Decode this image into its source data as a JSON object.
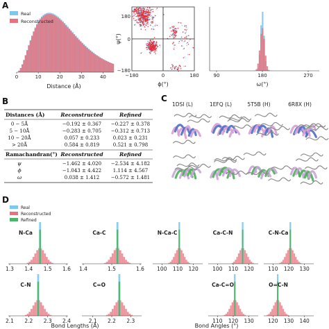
{
  "panels": {
    "a": "A",
    "b": "B",
    "c": "C",
    "d": "D"
  },
  "legend_a": [
    "Real",
    "Reconstructed"
  ],
  "legend_d": [
    "Real",
    "Reconstructed",
    "Refined"
  ],
  "colors": {
    "real": "#7ec8f0",
    "reconstructed": "#e8737e",
    "refined": "#4cb56a"
  },
  "chart_data": [
    {
      "type": "bar",
      "xlabel": "Distance (Å)",
      "ticks": [
        "0",
        "10",
        "20",
        "30",
        "40"
      ],
      "x_range": [
        0,
        45
      ],
      "series": [
        {
          "name": "Real",
          "shape": "right-skewed, peak near 15"
        },
        {
          "name": "Reconstructed",
          "shape": "right-skewed, peak near 15"
        }
      ]
    },
    {
      "type": "scatter",
      "xlabel": "ϕ(°)",
      "ylabel": "ψ(°)",
      "xticks": [
        "−180",
        "0",
        "180"
      ],
      "yticks": [
        "180",
        "0",
        "−180"
      ],
      "x_range": [
        -180,
        180
      ],
      "y_range": [
        -180,
        180
      ]
    },
    {
      "type": "bar",
      "xlabel": "ω(°)",
      "ticks": [
        "90",
        "180",
        "270"
      ],
      "x_range": [
        90,
        270
      ],
      "peak": 180
    }
  ],
  "table": {
    "head_dist": [
      "Distances (Å)",
      "Reconstructed",
      "Refined"
    ],
    "rows_dist": [
      [
        "0 − 5Å",
        "−0.192 ± 0.367",
        "−0.227 ± 0.378"
      ],
      [
        "5 − 10Å",
        "−0.283 ± 0.705",
        "−0.312 ± 0.713"
      ],
      [
        "10 − 20Å",
        "0.057 ± 0.233",
        "0.023 ± 0.231"
      ],
      [
        "> 20Å",
        "0.584 ± 0.819",
        "0.521 ± 0.798"
      ]
    ],
    "head_rama": [
      "Ramachandran(°)",
      "Reconstructed",
      "Refined"
    ],
    "rows_rama": [
      [
        "ψ",
        "−1.462 ± 4.020",
        "−2.534 ± 4.182"
      ],
      [
        "ϕ",
        "−1.043 ± 4.422",
        "1.114 ± 4.567"
      ],
      [
        "ω",
        "0.038 ± 1.412",
        "−0.572 ± 1.481"
      ]
    ]
  },
  "structures": [
    "1DSI (L)",
    "1EFQ (L)",
    "5T5B (H)",
    "6R8X (H)"
  ],
  "bond_lengths": {
    "xlabel": "Bond Lengths (Å)",
    "panels": [
      {
        "label": "N-Ca",
        "ticks": [
          "1.3",
          "1.4",
          "1.5",
          "1.6"
        ],
        "range": [
          1.3,
          1.6
        ],
        "peak": 1.46
      },
      {
        "label": "Ca-C",
        "ticks": [
          "1.4",
          "1.5",
          "1.6"
        ],
        "range": [
          1.4,
          1.6
        ],
        "peak": 1.52
      },
      {
        "label": "C-N",
        "ticks": [
          "2.1",
          "2.2",
          "2.3",
          "2.4"
        ],
        "range": [
          2.1,
          2.4
        ],
        "peak": 2.25
      },
      {
        "label": "C=O",
        "ticks": [
          "2.1",
          "2.2",
          "2.3"
        ],
        "range": [
          2.05,
          2.35
        ],
        "peak": 2.24
      }
    ]
  },
  "bond_angles": {
    "xlabel": "Bond Angles (°)",
    "panels": [
      {
        "label": "N-Ca-C",
        "ticks": [
          "100",
          "110",
          "120"
        ],
        "range": [
          95,
          125
        ],
        "peak": 111
      },
      {
        "label": "Ca-C-N",
        "ticks": [
          "100",
          "110",
          "120"
        ],
        "range": [
          95,
          125
        ],
        "peak": 116
      },
      {
        "label": "C-N-Ca",
        "ticks": [
          "110",
          "120",
          "130"
        ],
        "range": [
          105,
          135
        ],
        "peak": 121
      },
      {
        "label": "Ca-C=O",
        "ticks": [
          "110",
          "120",
          "130"
        ],
        "range": [
          105,
          135
        ],
        "peak": 121
      },
      {
        "label": "O=C-N",
        "ticks": [
          "120",
          "130",
          "140"
        ],
        "range": [
          115,
          145
        ],
        "peak": 123
      }
    ]
  }
}
